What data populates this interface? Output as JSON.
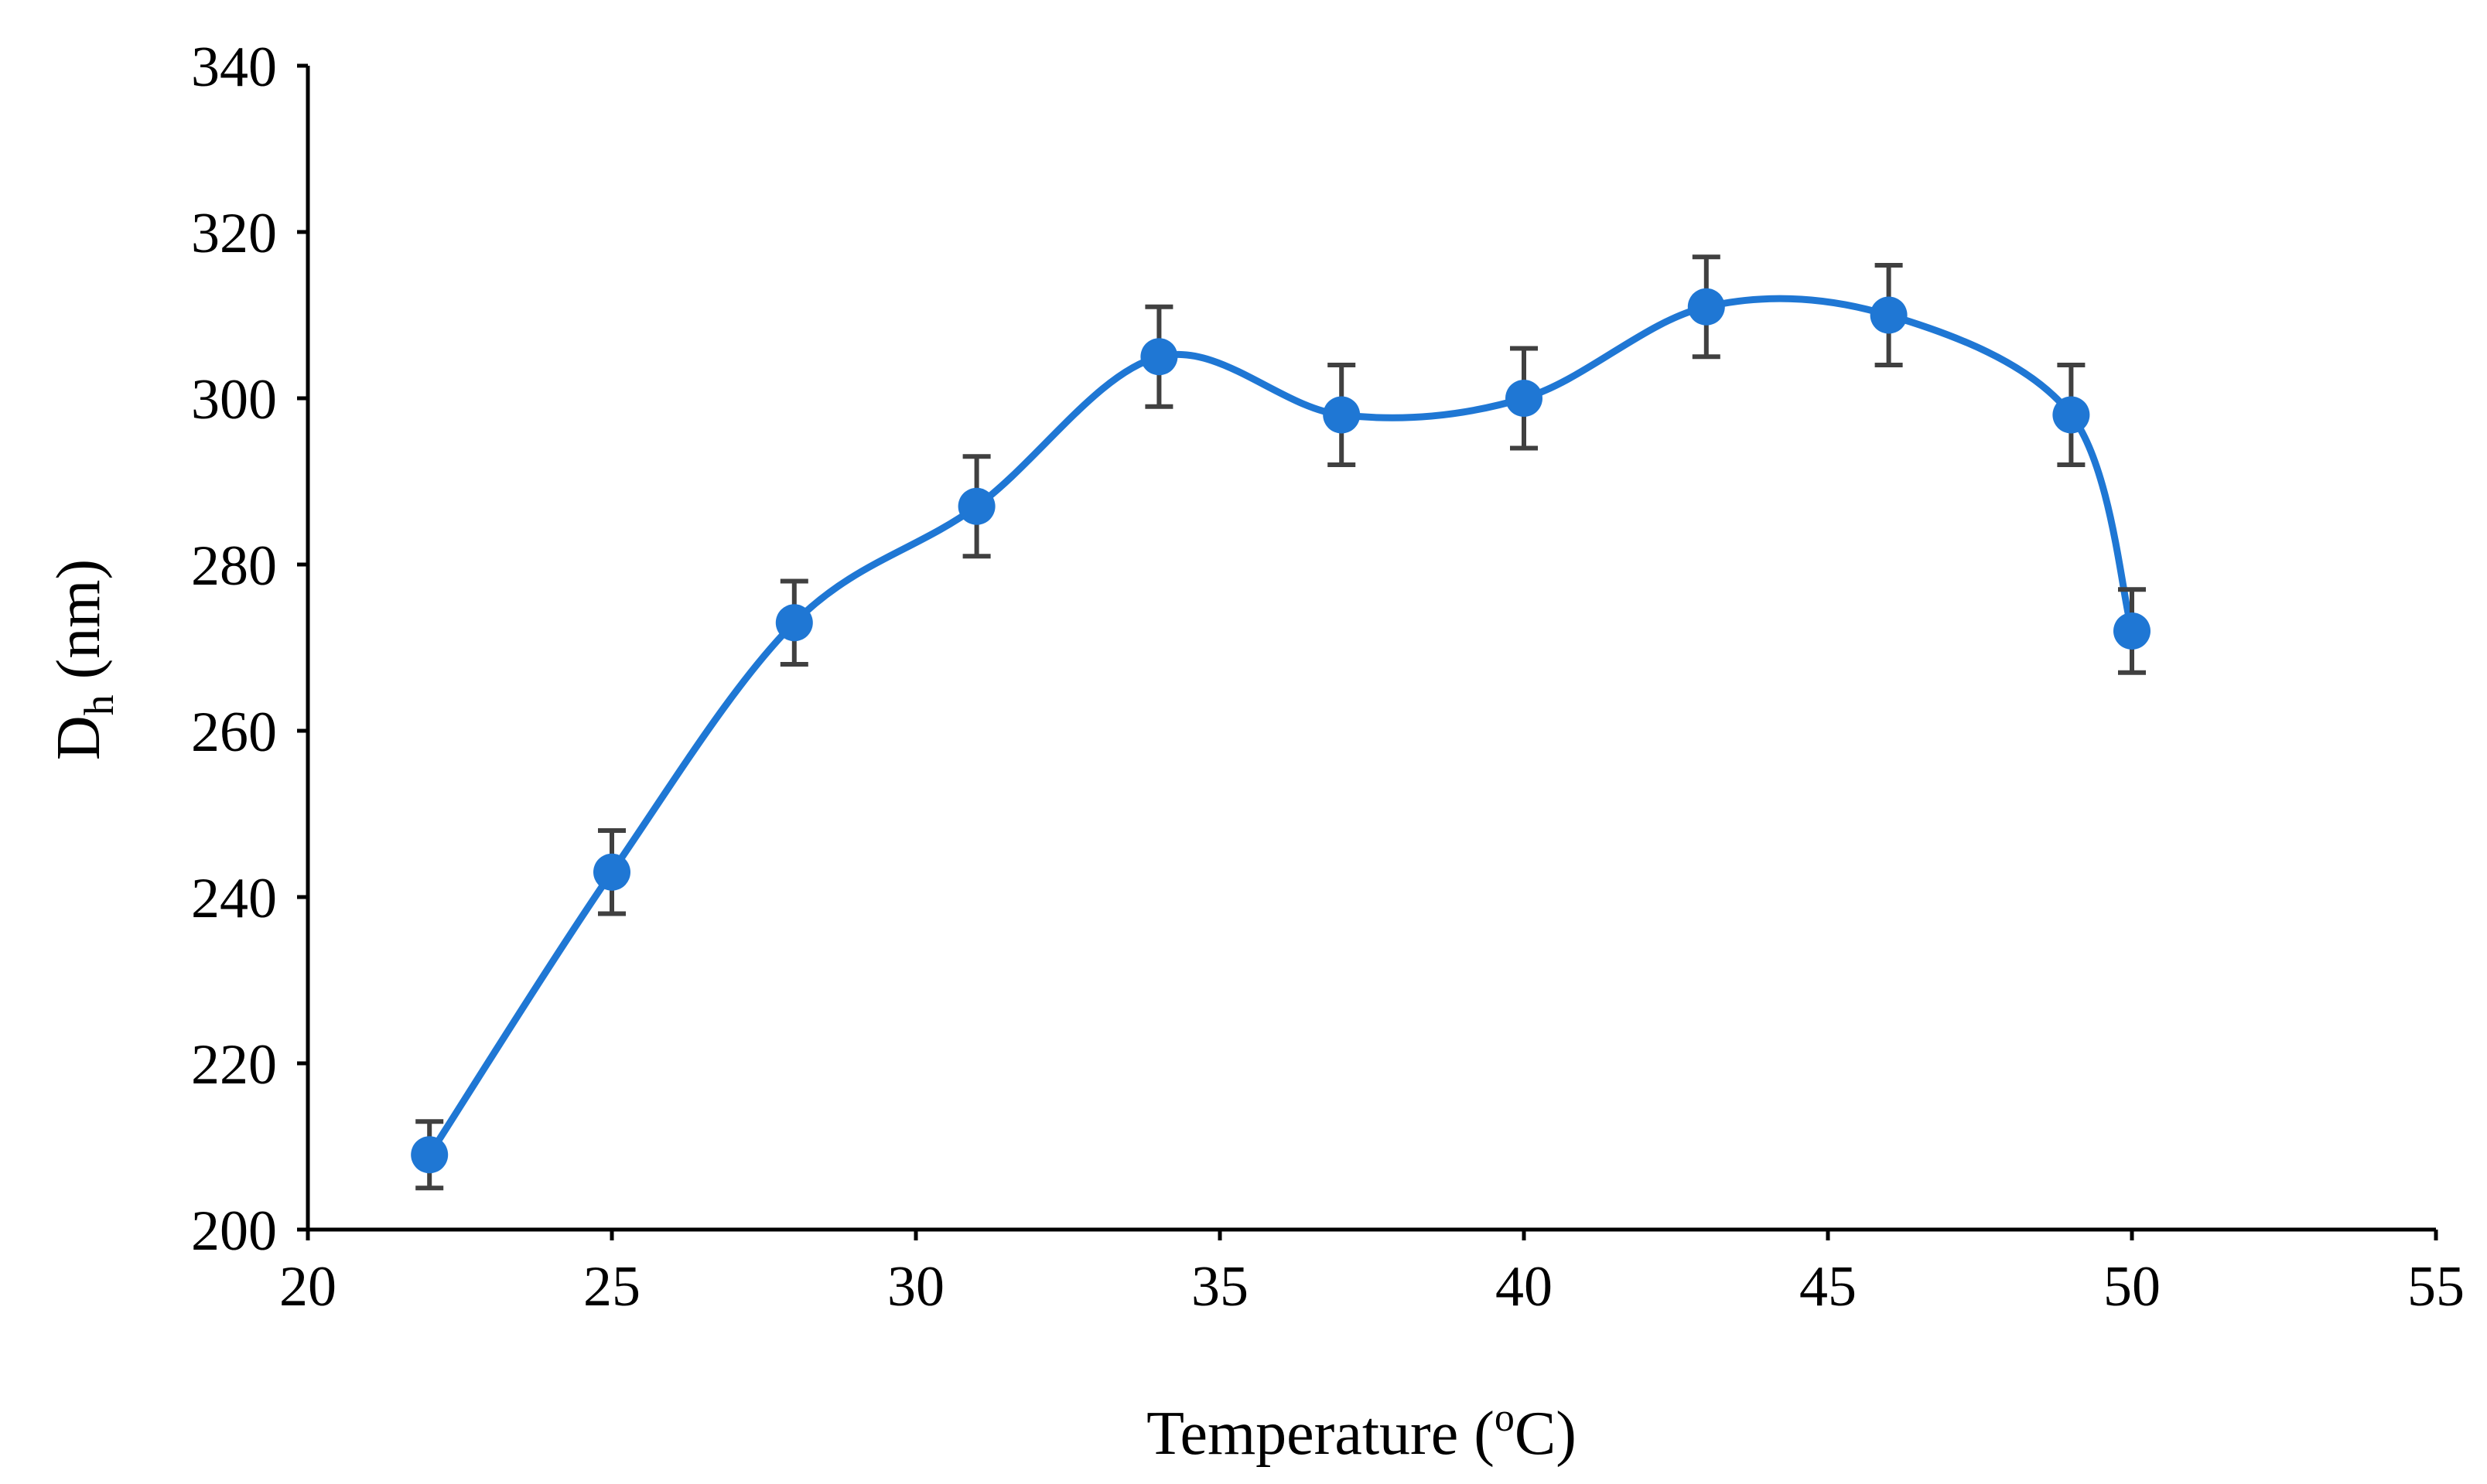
{
  "chart_data": {
    "type": "scatter",
    "title": "",
    "xlabel": "Temperature (°C)",
    "xlabel_parts": {
      "main": "Temperature (",
      "sup": "o",
      "rest": "C)"
    },
    "ylabel": "Dh (nm)",
    "ylabel_parts": {
      "main": "D",
      "sub": "h",
      "rest": " (nm)"
    },
    "xlim": [
      20,
      55
    ],
    "ylim": [
      200,
      340
    ],
    "xticks": [
      20,
      25,
      30,
      35,
      40,
      45,
      50,
      55
    ],
    "yticks": [
      200,
      220,
      240,
      260,
      280,
      300,
      320,
      340
    ],
    "grid": false,
    "legend": "none",
    "series": [
      {
        "name": "Dh",
        "color": "#1f77d4",
        "smooth": true,
        "x": [
          22,
          25,
          28,
          31,
          34,
          37,
          40,
          43,
          46,
          49,
          50
        ],
        "y": [
          209,
          243,
          273,
          287,
          305,
          298,
          300,
          311,
          310,
          298,
          272
        ],
        "error": [
          4,
          5,
          5,
          6,
          6,
          6,
          6,
          6,
          6,
          6,
          5
        ]
      }
    ]
  }
}
